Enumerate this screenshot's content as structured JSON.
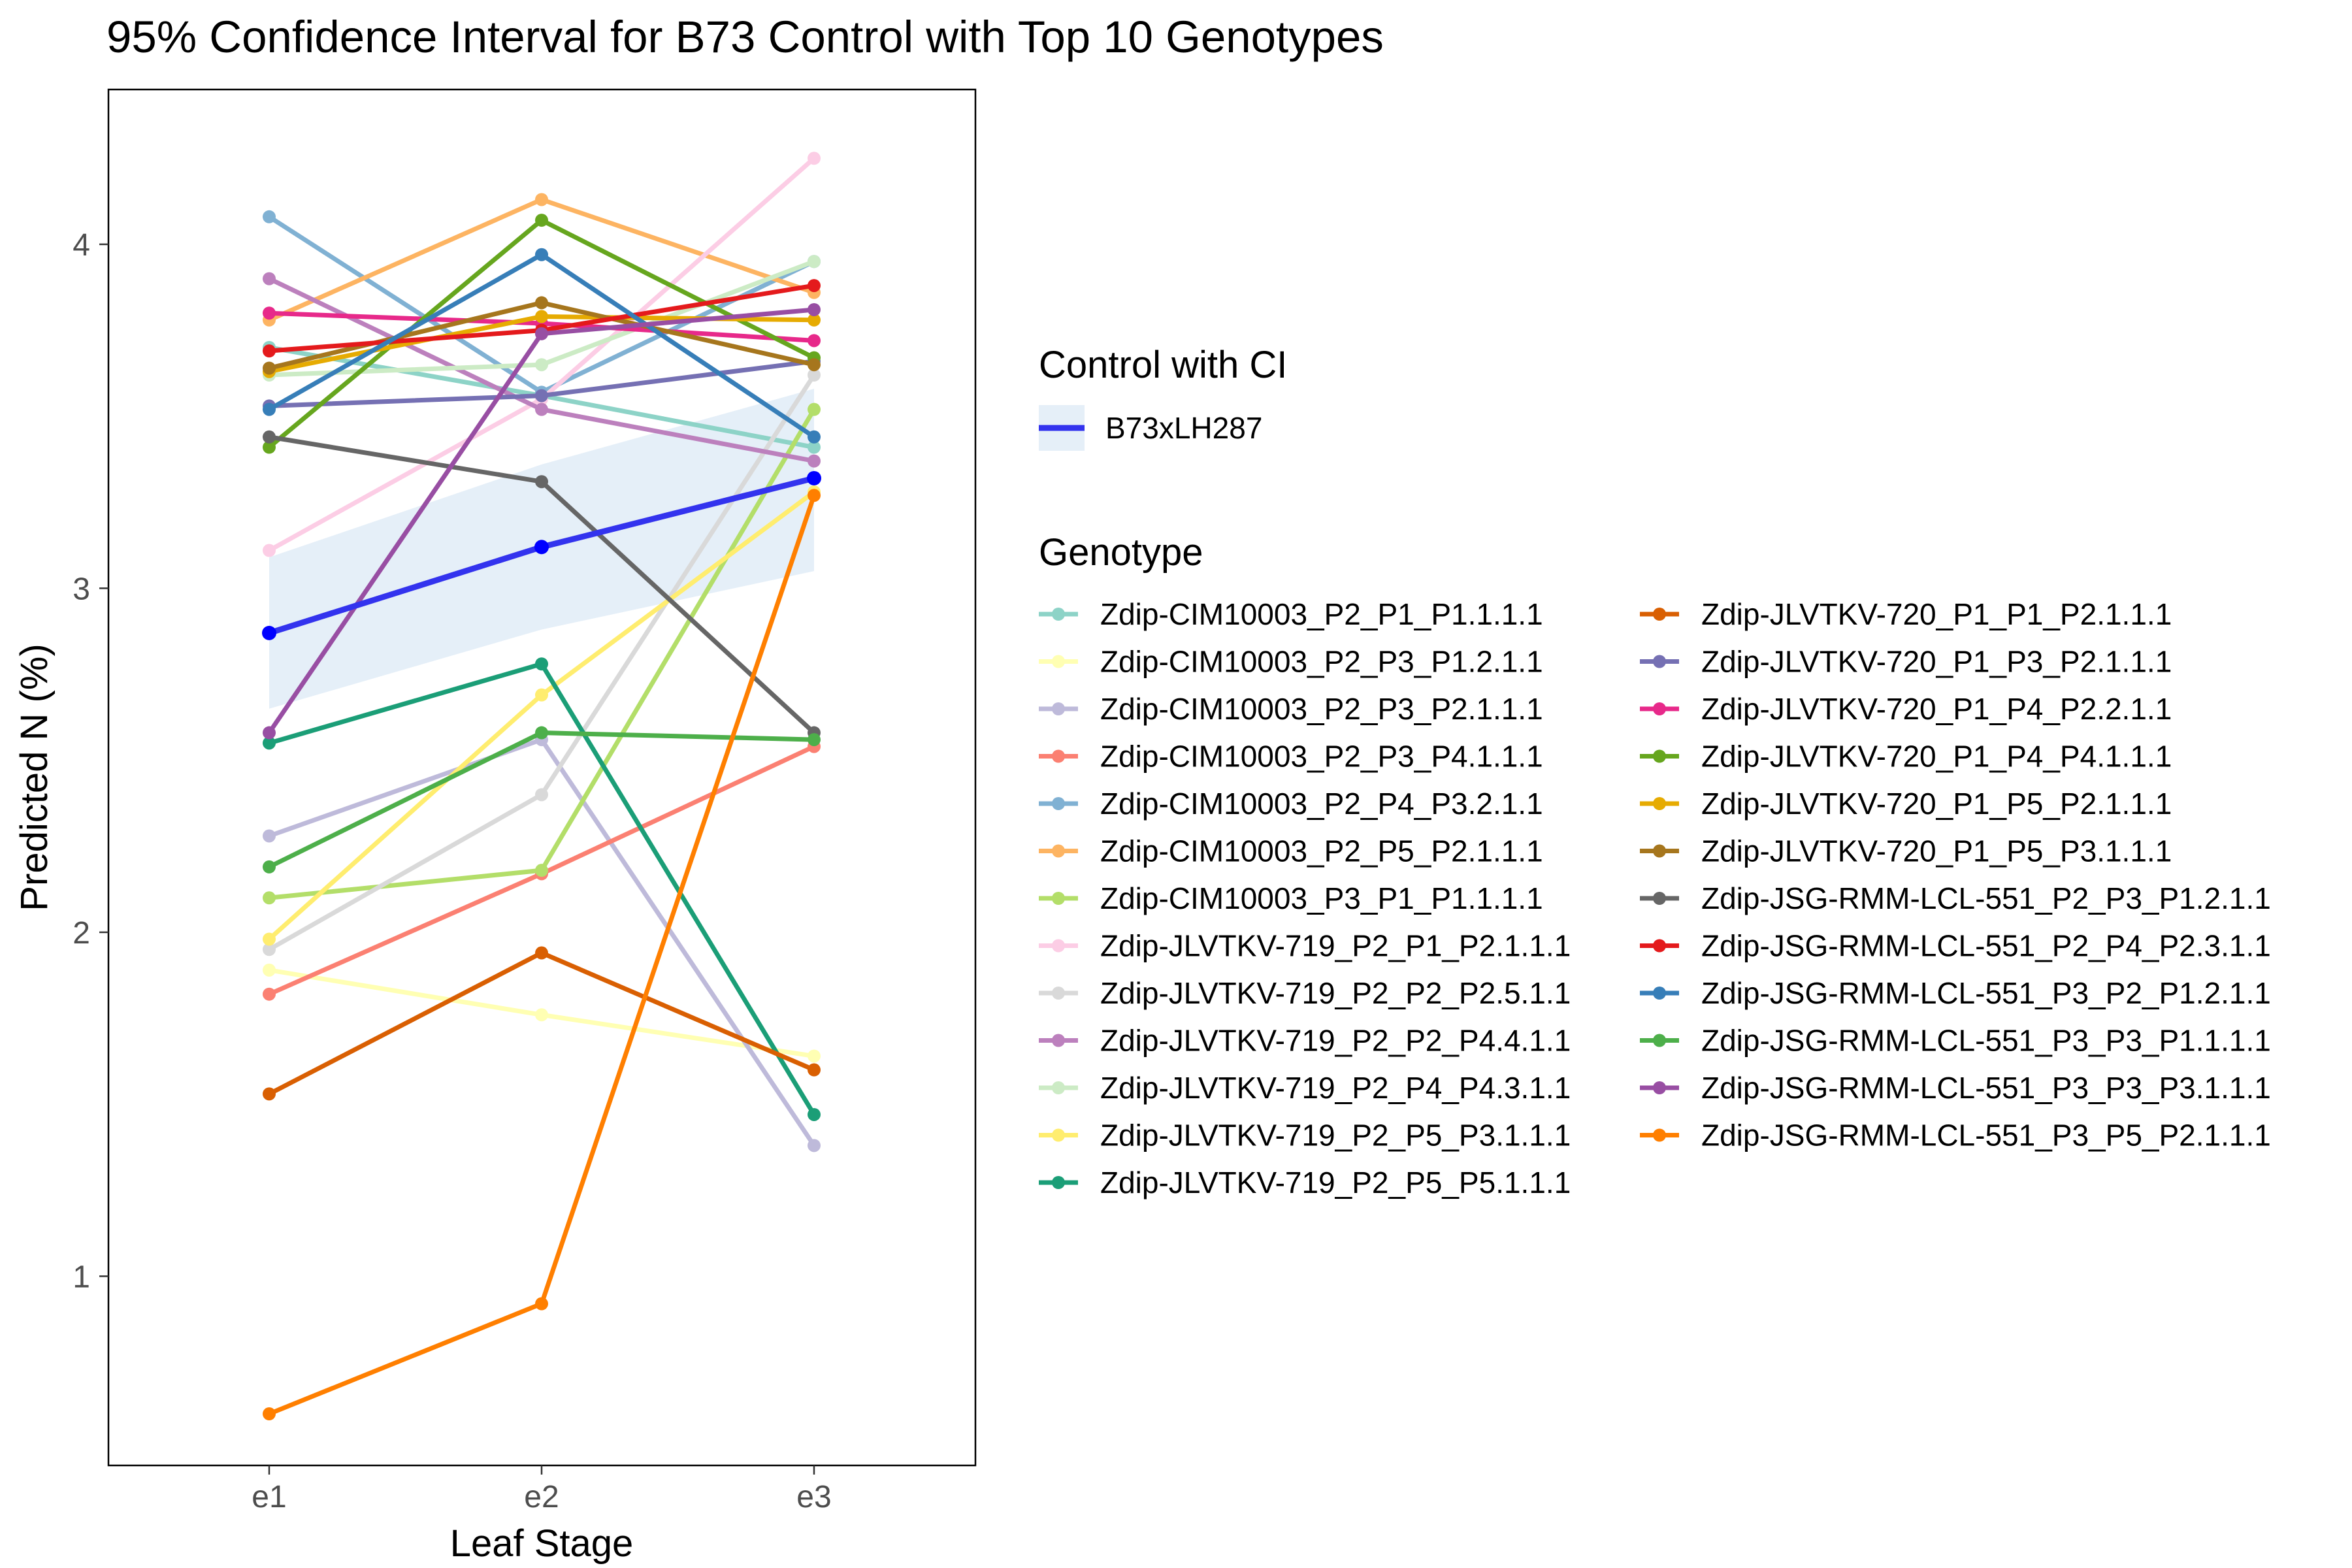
{
  "chart_data": {
    "type": "line",
    "title": "95% Confidence Interval for B73 Control with Top 10 Genotypes",
    "xlabel": "Leaf Stage",
    "ylabel": "Predicted N (%)",
    "categories": [
      "e1",
      "e2",
      "e3"
    ],
    "ylim": [
      0.45,
      4.45
    ],
    "y_ticks": [
      1,
      2,
      3,
      4
    ],
    "grid": false,
    "legend_position": "right",
    "control": {
      "legend_title": "Control with CI",
      "name": "B73xLH287",
      "color": "#3333ee",
      "values": [
        2.87,
        3.12,
        3.32
      ],
      "ci_lower": [
        2.65,
        2.88,
        3.05
      ],
      "ci_upper": [
        3.09,
        3.36,
        3.58
      ],
      "ci_color": "#c6dbef"
    },
    "genotype_legend_title": "Genotype",
    "series": [
      {
        "name": "Zdip-CIM10003_P2_P1_P1.1.1.1",
        "color": "#8dd3c7",
        "values": [
          3.7,
          3.56,
          3.41
        ]
      },
      {
        "name": "Zdip-CIM10003_P2_P3_P1.2.1.1",
        "color": "#ffffb3",
        "values": [
          1.89,
          1.76,
          1.64
        ]
      },
      {
        "name": "Zdip-CIM10003_P2_P3_P2.1.1.1",
        "color": "#bebada",
        "values": [
          2.28,
          2.56,
          1.38
        ]
      },
      {
        "name": "Zdip-CIM10003_P2_P3_P4.1.1.1",
        "color": "#fb8072",
        "values": [
          1.82,
          2.17,
          2.54
        ]
      },
      {
        "name": "Zdip-CIM10003_P2_P4_P3.2.1.1",
        "color": "#80b1d3",
        "values": [
          4.08,
          3.57,
          3.95
        ]
      },
      {
        "name": "Zdip-CIM10003_P2_P5_P2.1.1.1",
        "color": "#fdb462",
        "values": [
          3.78,
          4.13,
          3.86
        ]
      },
      {
        "name": "Zdip-CIM10003_P3_P1_P1.1.1.1",
        "color": "#b3de69",
        "values": [
          2.1,
          2.18,
          3.52
        ]
      },
      {
        "name": "Zdip-JLVTKV-719_P2_P1_P2.1.1.1",
        "color": "#fccde5",
        "values": [
          3.11,
          3.55,
          4.25
        ]
      },
      {
        "name": "Zdip-JLVTKV-719_P2_P2_P2.5.1.1",
        "color": "#d9d9d9",
        "values": [
          1.95,
          2.4,
          3.62
        ]
      },
      {
        "name": "Zdip-JLVTKV-719_P2_P2_P4.4.1.1",
        "color": "#bc80bd",
        "values": [
          3.9,
          3.52,
          3.37
        ]
      },
      {
        "name": "Zdip-JLVTKV-719_P2_P4_P4.3.1.1",
        "color": "#ccebc5",
        "values": [
          3.62,
          3.65,
          3.95
        ]
      },
      {
        "name": "Zdip-JLVTKV-719_P2_P5_P3.1.1.1",
        "color": "#ffed6f",
        "values": [
          1.98,
          2.69,
          3.28
        ]
      },
      {
        "name": "Zdip-JLVTKV-719_P2_P5_P5.1.1.1",
        "color": "#1b9e77",
        "values": [
          2.55,
          2.78,
          1.47
        ]
      },
      {
        "name": "Zdip-JLVTKV-720_P1_P1_P2.1.1.1",
        "color": "#d95f02",
        "values": [
          1.53,
          1.94,
          1.6
        ]
      },
      {
        "name": "Zdip-JLVTKV-720_P1_P3_P2.1.1.1",
        "color": "#7570b3",
        "values": [
          3.53,
          3.56,
          3.66
        ]
      },
      {
        "name": "Zdip-JLVTKV-720_P1_P4_P2.2.1.1",
        "color": "#e7298a",
        "values": [
          3.8,
          3.77,
          3.72
        ]
      },
      {
        "name": "Zdip-JLVTKV-720_P1_P4_P4.1.1.1",
        "color": "#66a61e",
        "values": [
          3.41,
          4.07,
          3.67
        ]
      },
      {
        "name": "Zdip-JLVTKV-720_P1_P5_P2.1.1.1",
        "color": "#e6ab02",
        "values": [
          3.63,
          3.79,
          3.78
        ]
      },
      {
        "name": "Zdip-JLVTKV-720_P1_P5_P3.1.1.1",
        "color": "#a6761d",
        "values": [
          3.64,
          3.83,
          3.65
        ]
      },
      {
        "name": "Zdip-JSG-RMM-LCL-551_P2_P3_P1.2.1.1",
        "color": "#666666",
        "values": [
          3.44,
          3.31,
          2.58
        ]
      },
      {
        "name": "Zdip-JSG-RMM-LCL-551_P2_P4_P2.3.1.1",
        "color": "#e41a1c",
        "values": [
          3.69,
          3.75,
          3.88
        ]
      },
      {
        "name": "Zdip-JSG-RMM-LCL-551_P3_P2_P1.2.1.1",
        "color": "#377eb8",
        "values": [
          3.52,
          3.97,
          3.44
        ]
      },
      {
        "name": "Zdip-JSG-RMM-LCL-551_P3_P3_P1.1.1.1",
        "color": "#4daf4a",
        "values": [
          2.19,
          2.58,
          2.56
        ]
      },
      {
        "name": "Zdip-JSG-RMM-LCL-551_P3_P3_P3.1.1.1",
        "color": "#984ea3",
        "values": [
          2.58,
          3.74,
          3.81
        ]
      },
      {
        "name": "Zdip-JSG-RMM-LCL-551_P3_P5_P2.1.1.1",
        "color": "#ff7f00",
        "values": [
          0.6,
          0.92,
          3.27
        ]
      }
    ]
  }
}
